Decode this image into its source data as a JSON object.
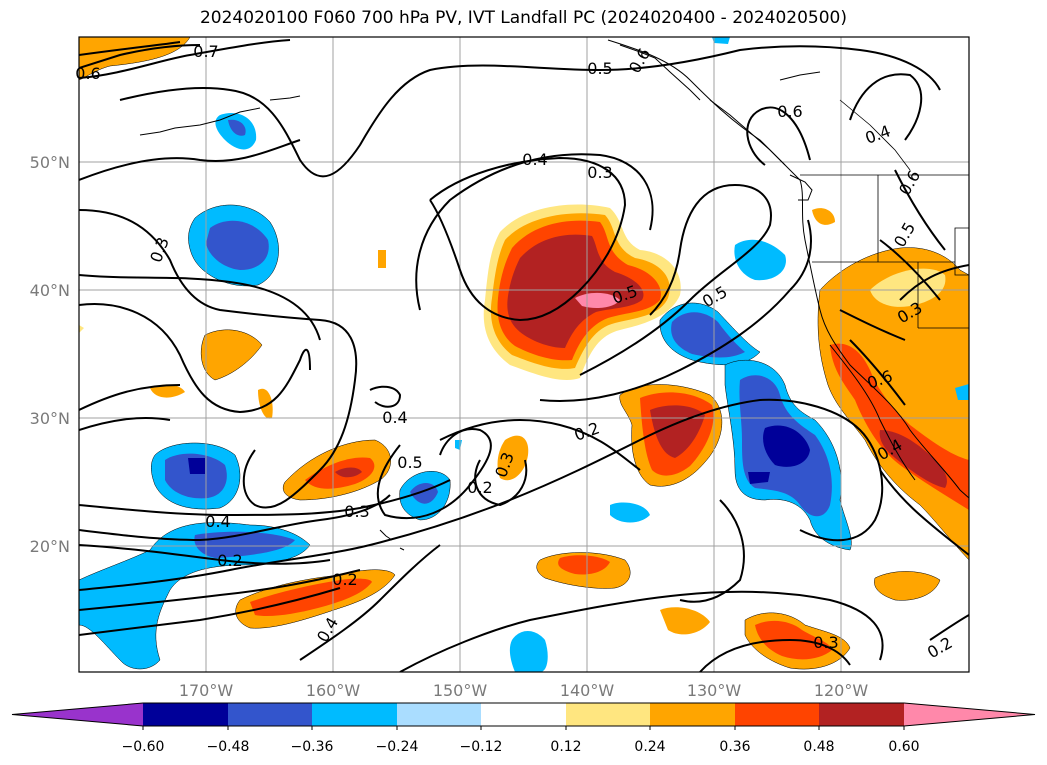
{
  "title": "2024020100 F060 700 hPa PV, IVT Landfall PC (2024020400 - 2024020500)",
  "lat_ticks": [
    "50°N",
    "40°N",
    "30°N",
    "20°N"
  ],
  "lon_ticks": [
    "170°W",
    "160°W",
    "150°W",
    "140°W",
    "130°W",
    "120°W"
  ],
  "colorbar": {
    "ticks": [
      "−0.60",
      "−0.48",
      "−0.36",
      "−0.24",
      "−0.12",
      "0.12",
      "0.24",
      "0.36",
      "0.48",
      "0.60"
    ],
    "colors": [
      "#9933cc",
      "#000099",
      "#3355cc",
      "#00bbff",
      "#aaddff",
      "#ffffff",
      "#ffe680",
      "#ffa500",
      "#ff4400",
      "#b22222",
      "#ff88aa"
    ]
  },
  "contour_labels": [
    "0.7",
    "0.6",
    "0.5",
    "0.6",
    "0.6",
    "0.4",
    "0.4",
    "0.3",
    "0.6",
    "0.5",
    "0.3",
    "0.5",
    "0.3",
    "0.5",
    "0.6",
    "0.4",
    "0.5",
    "0.3",
    "0.2",
    "0.2",
    "0.4",
    "0.3",
    "0.2",
    "0.2",
    "0.4",
    "0.4",
    "0.3",
    "0.2"
  ],
  "chart_data": {
    "type": "heatmap",
    "fields": [
      "700 hPa PV (contours)",
      "IVT Landfall PC (shaded)"
    ],
    "lat_range": [
      10,
      60
    ],
    "lon_range": [
      -180,
      -110
    ],
    "pc_levels": [
      -0.6,
      -0.48,
      -0.36,
      -0.24,
      -0.12,
      0.12,
      0.24,
      0.36,
      0.48,
      0.6
    ],
    "grid": true
  }
}
